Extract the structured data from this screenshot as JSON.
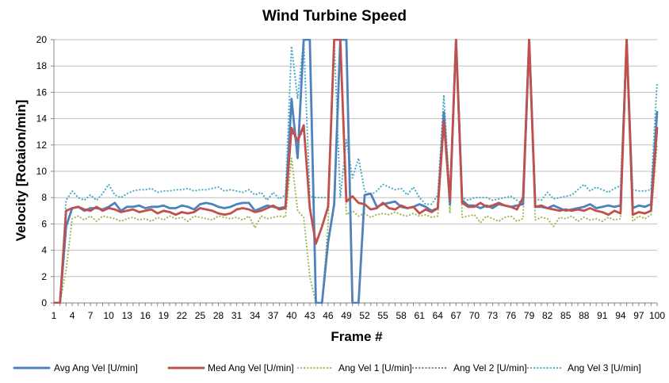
{
  "chart_data": {
    "type": "line",
    "title": "Wind Turbine Speed",
    "xlabel": "Frame #",
    "ylabel": "Velocity  [Rotaion/min]",
    "ylim": [
      0,
      20
    ],
    "xlim": [
      1,
      100
    ],
    "y_ticks": [
      "0",
      "2",
      "4",
      "6",
      "8",
      "10",
      "12",
      "14",
      "16",
      "18",
      "20"
    ],
    "x_ticks": [
      "1",
      "4",
      "7",
      "10",
      "13",
      "16",
      "19",
      "22",
      "25",
      "28",
      "31",
      "34",
      "37",
      "40",
      "43",
      "46",
      "49",
      "52",
      "55",
      "58",
      "61",
      "64",
      "67",
      "70",
      "73",
      "76",
      "79",
      "82",
      "85",
      "88",
      "91",
      "94",
      "97",
      "100"
    ],
    "grid": "horizontal",
    "legend_position": "bottom",
    "series": [
      {
        "name": "Avg Ang Vel [U/min]",
        "color": "#4F81BD",
        "style": "solid",
        "values": [
          0,
          0,
          5.8,
          7.2,
          7.3,
          7.0,
          7.2,
          7.2,
          7.1,
          7.3,
          7.6,
          7.0,
          7.3,
          7.3,
          7.4,
          7.2,
          7.3,
          7.3,
          7.4,
          7.2,
          7.2,
          7.4,
          7.3,
          7.1,
          7.5,
          7.6,
          7.5,
          7.3,
          7.2,
          7.3,
          7.5,
          7.6,
          7.6,
          7.0,
          7.2,
          7.4,
          7.3,
          7.2,
          7.3,
          15.5,
          11.0,
          20,
          20,
          0,
          0,
          4.6,
          7.5,
          20,
          20,
          0,
          0,
          8.2,
          8.3,
          7.3,
          7.5,
          7.6,
          7.7,
          7.3,
          7.2,
          7.3,
          7.5,
          7.3,
          7.0,
          7.2,
          14.5,
          7.5,
          20,
          7.8,
          7.4,
          7.4,
          7.2,
          7.4,
          7.2,
          7.5,
          7.4,
          7.3,
          7.4,
          7.5,
          20,
          7.3,
          7.3,
          7.2,
          7.4,
          7.2,
          7.0,
          7.1,
          7.2,
          7.3,
          7.5,
          7.2,
          7.3,
          7.4,
          7.3,
          7.4,
          20,
          7.2,
          7.4,
          7.3,
          7.5,
          14.5
        ]
      },
      {
        "name": "Med Ang Vel [U/min]",
        "color": "#C0504D",
        "style": "solid",
        "values": [
          0,
          0,
          7.0,
          7.2,
          7.3,
          7.1,
          7.0,
          7.3,
          7.0,
          7.2,
          7.1,
          6.9,
          7.0,
          7.1,
          6.9,
          7.0,
          7.1,
          6.8,
          7.0,
          6.9,
          6.7,
          6.9,
          6.8,
          6.9,
          7.2,
          7.1,
          7.0,
          6.8,
          6.7,
          6.8,
          7.1,
          7.2,
          7.1,
          6.9,
          7.0,
          7.2,
          7.4,
          7.1,
          7.2,
          13.3,
          12.3,
          13.5,
          7.2,
          4.5,
          5.8,
          7.3,
          20,
          20,
          7.7,
          8.1,
          7.6,
          7.5,
          7.1,
          7.2,
          7.6,
          7.2,
          7.1,
          7.4,
          7.2,
          7.3,
          6.8,
          7.1,
          6.9,
          7.2,
          13.8,
          7.8,
          20,
          7.6,
          7.3,
          7.3,
          7.6,
          7.3,
          7.4,
          7.6,
          7.4,
          7.3,
          7.1,
          8.0,
          20,
          7.3,
          7.4,
          7.2,
          7.1,
          7.0,
          7.1,
          7.0,
          7.1,
          7.0,
          7.2,
          7.0,
          6.9,
          6.7,
          7.0,
          6.8,
          20,
          6.7,
          6.9,
          6.8,
          7.0,
          13.3
        ]
      },
      {
        "name": "Ang Vel 1 [U/min]",
        "color": "#9BBB59",
        "style": "dotted",
        "values": [
          0,
          0,
          2.5,
          6.4,
          6.6,
          6.3,
          6.6,
          6.2,
          6.6,
          6.5,
          6.4,
          6.2,
          6.4,
          6.5,
          6.3,
          6.4,
          6.2,
          6.5,
          6.3,
          6.6,
          6.4,
          6.5,
          6.2,
          6.6,
          6.5,
          6.4,
          6.3,
          6.6,
          6.5,
          6.4,
          6.5,
          6.3,
          6.6,
          5.7,
          6.6,
          6.4,
          6.5,
          6.6,
          6.5,
          11.0,
          7.0,
          6.5,
          2.0,
          0,
          0,
          6.0,
          20,
          20,
          6.7,
          7.0,
          6.6,
          6.8,
          6.5,
          6.7,
          6.8,
          6.7,
          6.9,
          6.7,
          6.6,
          6.8,
          6.6,
          6.7,
          6.5,
          6.6,
          13.8,
          6.8,
          20,
          6.5,
          6.6,
          6.7,
          6.1,
          6.6,
          6.4,
          6.2,
          6.5,
          6.6,
          6.2,
          6.4,
          20,
          6.3,
          6.5,
          6.4,
          5.8,
          6.5,
          6.4,
          6.6,
          6.2,
          6.5,
          6.3,
          6.4,
          6.2,
          6.5,
          6.3,
          6.4,
          20,
          6.2,
          6.6,
          6.4,
          6.7,
          12.0
        ]
      },
      {
        "name": "Ang Vel 2 [U/min]",
        "color": "#8064A2",
        "style": "dotted",
        "values": [
          0,
          0,
          7.0,
          7.2,
          7.3,
          7.1,
          7.0,
          7.3,
          7.0,
          7.2,
          7.1,
          6.9,
          7.0,
          7.1,
          6.9,
          7.0,
          7.1,
          6.8,
          7.0,
          6.9,
          6.7,
          6.9,
          6.8,
          6.9,
          7.2,
          7.1,
          7.0,
          6.8,
          6.7,
          6.8,
          7.1,
          7.2,
          7.1,
          6.9,
          7.0,
          7.2,
          7.4,
          7.1,
          7.2,
          13.0,
          12.3,
          13.2,
          7.2,
          4.5,
          5.8,
          7.3,
          20,
          20,
          7.7,
          8.1,
          7.6,
          7.5,
          7.1,
          7.2,
          7.6,
          7.2,
          7.1,
          7.4,
          7.2,
          7.3,
          6.8,
          7.1,
          6.9,
          7.2,
          13.8,
          7.8,
          20,
          7.6,
          7.3,
          7.3,
          7.6,
          7.3,
          7.4,
          7.6,
          7.4,
          7.3,
          7.1,
          8.0,
          20,
          7.3,
          7.4,
          7.2,
          7.1,
          7.0,
          7.1,
          7.0,
          7.1,
          7.0,
          7.2,
          7.0,
          6.9,
          6.7,
          7.0,
          6.8,
          20,
          6.7,
          6.9,
          6.8,
          7.0,
          13.3
        ]
      },
      {
        "name": "Ang Vel 3 [U/min]",
        "color": "#4BACC6",
        "style": "dotted",
        "values": [
          0,
          0,
          7.8,
          8.5,
          8.0,
          7.8,
          8.2,
          7.8,
          8.3,
          9.0,
          8.2,
          8.0,
          8.3,
          8.5,
          8.6,
          8.6,
          8.7,
          8.4,
          8.5,
          8.5,
          8.6,
          8.6,
          8.7,
          8.5,
          8.6,
          8.6,
          8.7,
          8.8,
          8.5,
          8.6,
          8.5,
          8.4,
          8.6,
          8.2,
          8.4,
          7.8,
          8.4,
          7.9,
          8.2,
          19.5,
          15.5,
          20,
          8.1,
          8.0,
          8.0,
          8.0,
          20,
          8.0,
          12.4,
          9.5,
          11.0,
          8.5,
          8.2,
          8.5,
          9.0,
          8.8,
          8.6,
          8.7,
          8.2,
          8.8,
          8.0,
          7.5,
          7.5,
          8.2,
          15.8,
          8.0,
          20,
          8.0,
          7.8,
          8.0,
          8.0,
          8.0,
          7.8,
          7.9,
          8.0,
          8.1,
          7.8,
          7.5,
          20,
          7.9,
          7.8,
          8.4,
          7.9,
          8.0,
          8.1,
          8.2,
          8.6,
          9.0,
          8.5,
          8.8,
          8.6,
          8.4,
          8.7,
          8.9,
          20,
          8.6,
          8.5,
          8.5,
          8.6,
          16.8
        ]
      }
    ]
  }
}
